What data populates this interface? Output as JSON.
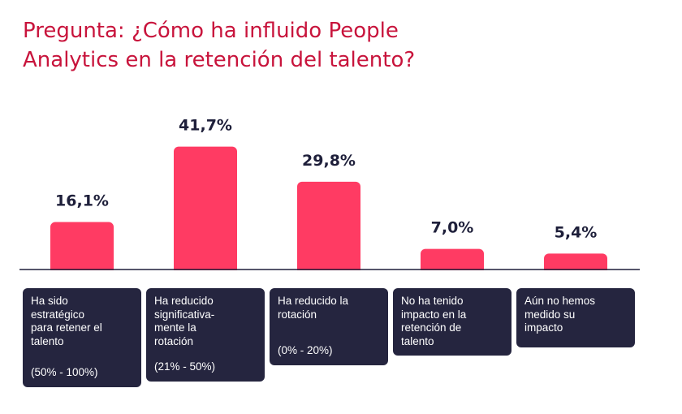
{
  "title_lines": [
    "Pregunta: ¿Cómo ha influido People",
    "Analytics en la retención del talento?"
  ],
  "colors": {
    "title": "#c8143c",
    "bar": "#ff3b63",
    "value_text": "#1e1f3a",
    "box": "#25253f",
    "box_text": "#ffffff",
    "axis": "#1e1f3a"
  },
  "chart_data": {
    "type": "bar",
    "title": "Pregunta: ¿Cómo ha influido People Analytics en la retención del talento?",
    "xlabel": "",
    "ylabel": "",
    "ylim": [
      0,
      45
    ],
    "grid": false,
    "legend": "none",
    "categories": [
      "Ha sido estratégico para retener el talento (50% - 100%)",
      "Ha reducido significativamente la rotación (21% - 50%)",
      "Ha reducido la rotación (0% - 20%)",
      "No ha tenido impacto en la retención de talento",
      "Aún no hemos medido su impacto"
    ],
    "values": [
      16.1,
      41.7,
      29.8,
      7.0,
      5.4
    ],
    "value_labels": [
      "16,1%",
      "41,7%",
      "29,8%",
      "7,0%",
      "5,4%"
    ]
  },
  "category_boxes": [
    {
      "lines": [
        "Ha sido",
        "estratégico",
        "para retener el",
        "talento"
      ],
      "range": "(50% - 100%)"
    },
    {
      "lines": [
        "Ha reducido",
        "significativa-",
        "mente la",
        "rotación"
      ],
      "range": "(21% - 50%)"
    },
    {
      "lines": [
        "Ha reducido la",
        "rotación"
      ],
      "range": "(0% - 20%)"
    },
    {
      "lines": [
        "No ha tenido",
        "impacto en la",
        "retención de",
        "talento"
      ],
      "range": ""
    },
    {
      "lines": [
        "Aún no hemos",
        "medido su",
        "impacto"
      ],
      "range": ""
    }
  ]
}
